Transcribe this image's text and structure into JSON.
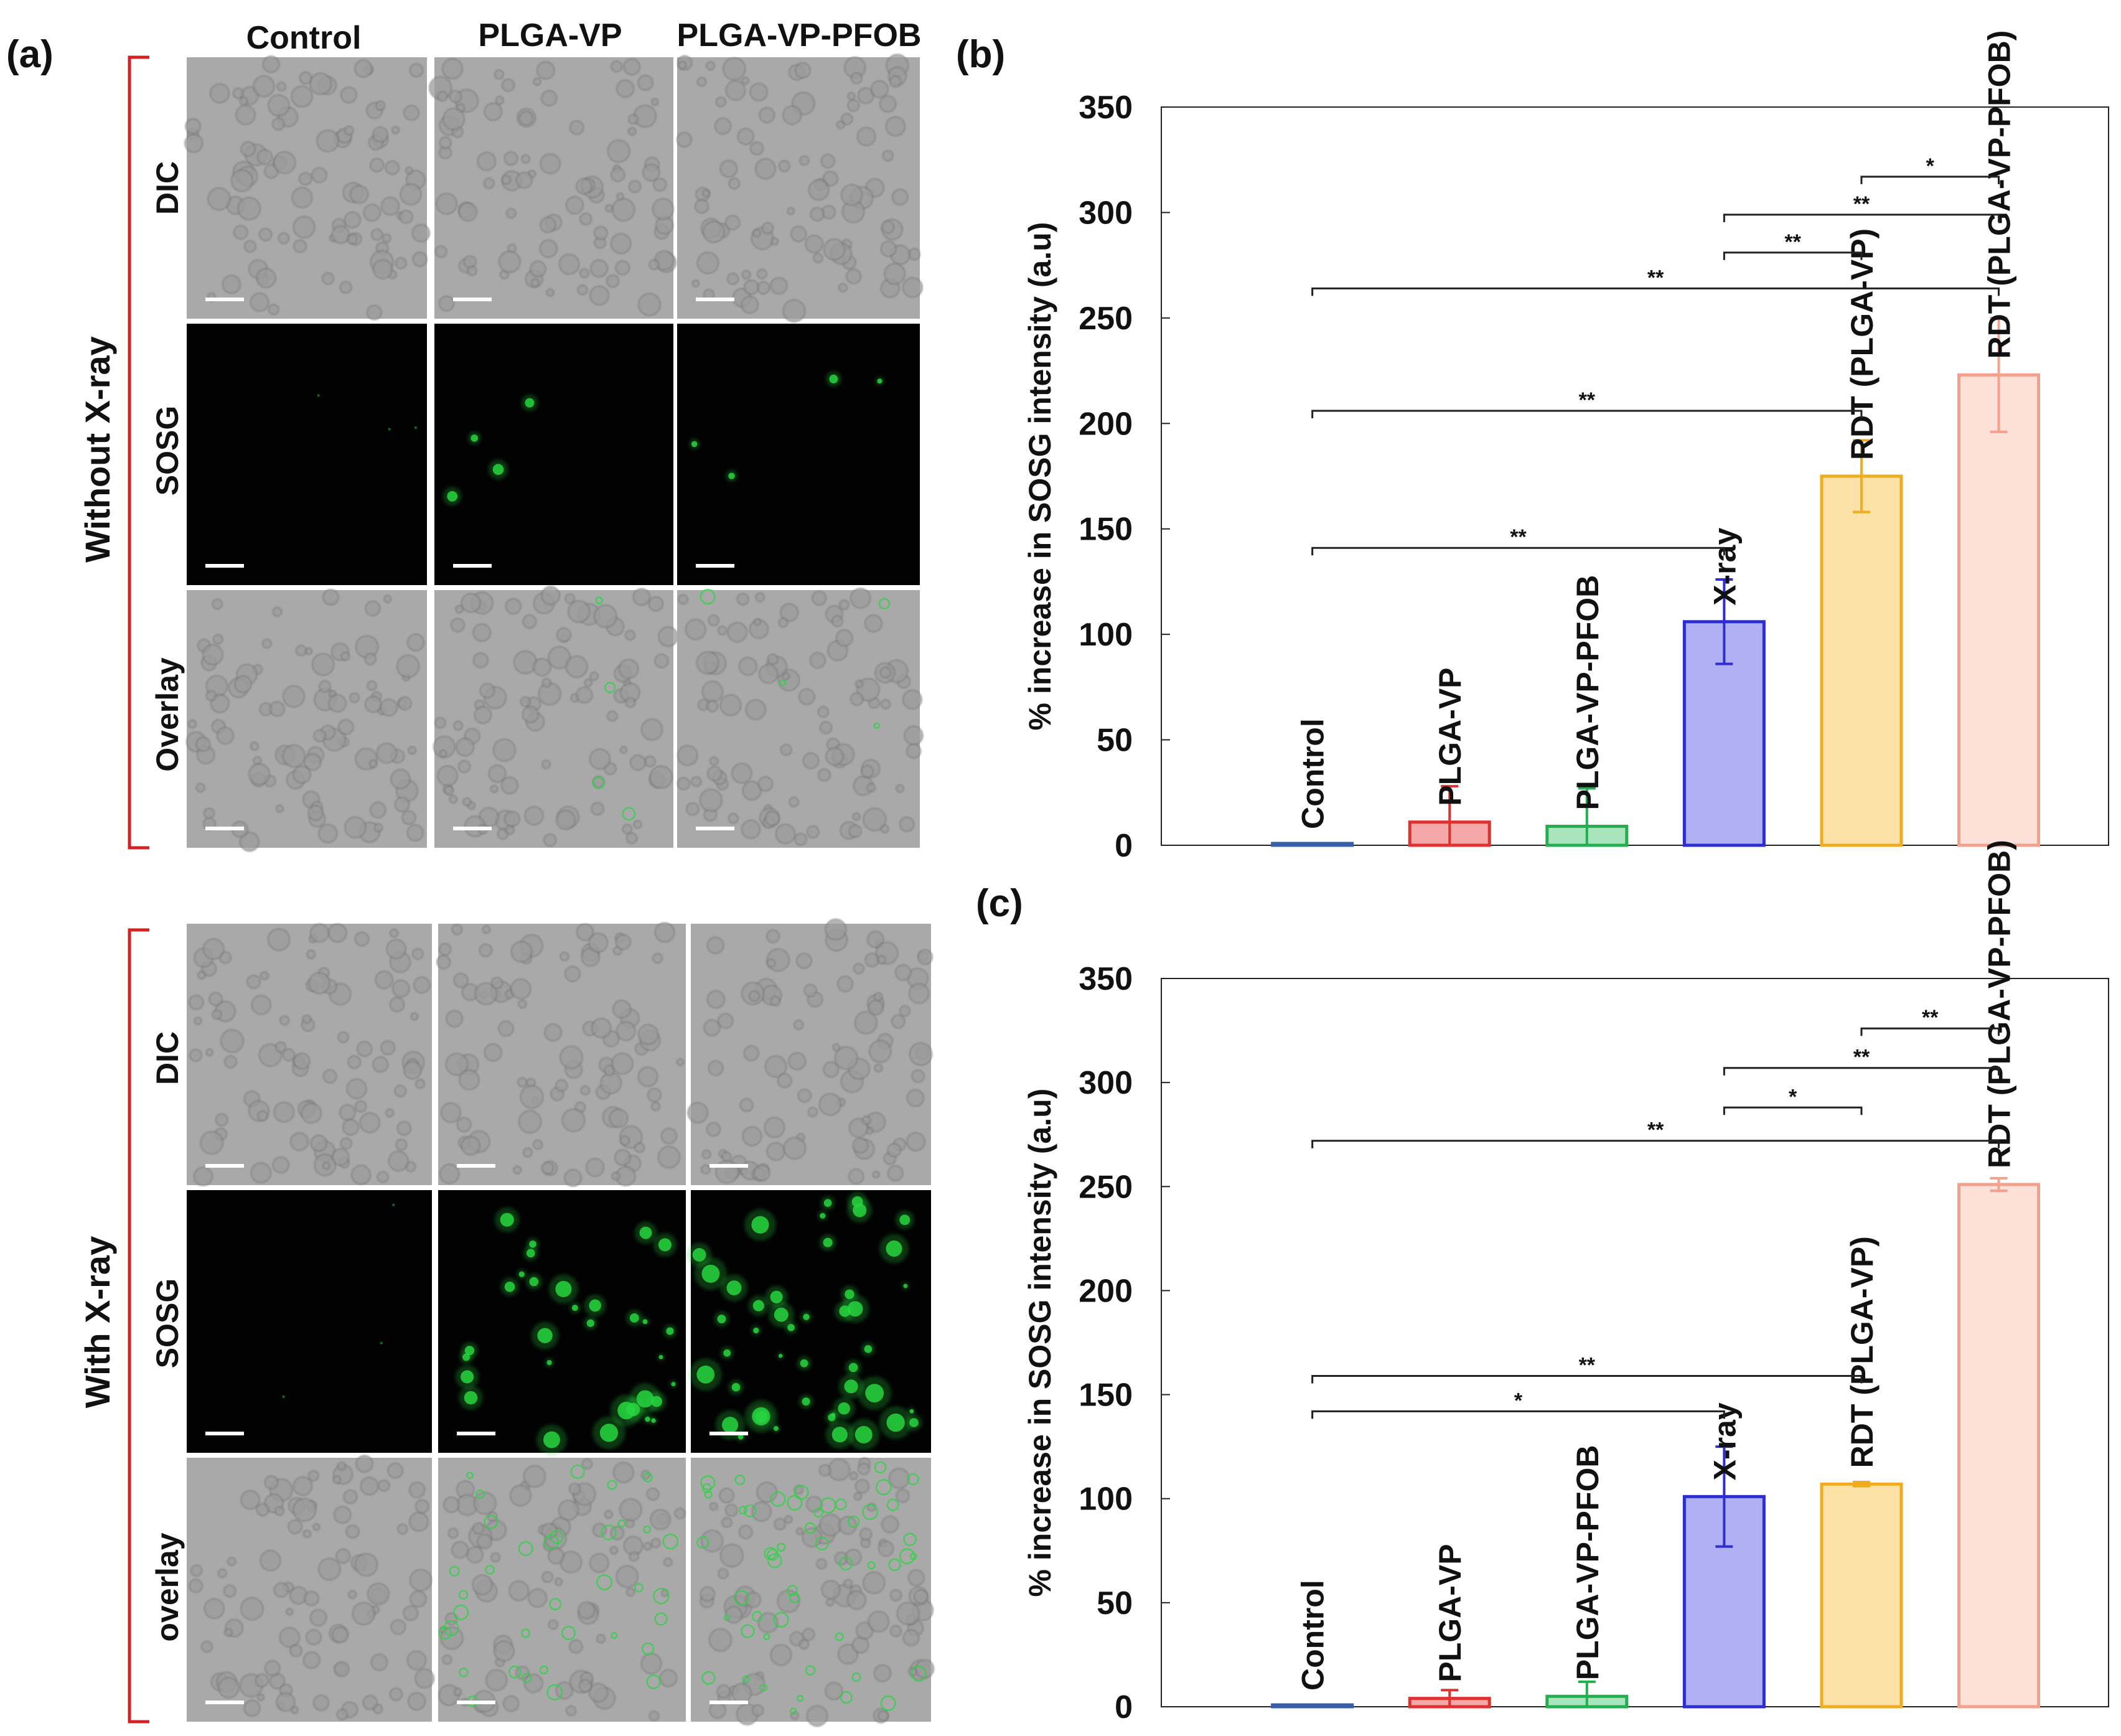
{
  "panel_labels": {
    "a": "(a)",
    "b": "(b)",
    "c": "(c)"
  },
  "micro": {
    "columns": [
      "Control",
      "PLGA-VP",
      "PLGA-VP-PFOB"
    ],
    "top": {
      "group_label": "Without X-ray",
      "rows": [
        "DIC",
        "SOSG",
        "Overlay"
      ]
    },
    "bottom": {
      "group_label": "With X-ray",
      "rows": [
        "DIC",
        "SOSG",
        "overlay"
      ]
    }
  },
  "colors": {
    "bracket": "#d42020",
    "dic_bg": "#a9a9a9",
    "sosg_bg": "#020202",
    "fluor": "#27d640",
    "scalebar": "#ffffff"
  },
  "chart_data": [
    {
      "panel": "(b)",
      "type": "bar",
      "ylabel": "% increase in SOSG intensity (a.u)",
      "ylim": [
        0,
        350
      ],
      "yticks": [
        0,
        50,
        100,
        150,
        200,
        250,
        300,
        350
      ],
      "categories": [
        "Control",
        "PLGA-VP",
        "PLGA-VP-PFOB",
        "X-ray",
        "RDT (PLGA-VP)",
        "RDT (PLGA-VP-PFOB)"
      ],
      "values": [
        0,
        11,
        9,
        106,
        175,
        223
      ],
      "errors": [
        0,
        17,
        18,
        20,
        17,
        27
      ],
      "colors": [
        "#3a5fa8",
        "#e03030",
        "#22b04f",
        "#2e2ed0",
        "#f0ab1e",
        "#f4a08a"
      ],
      "fills": [
        "#dfe6f5",
        "#f5a8a8",
        "#a8e5bd",
        "#b0b0f5",
        "#fde2a8",
        "#fde1d8"
      ],
      "significance": [
        {
          "from": 4,
          "to": 5,
          "y": 317,
          "label": "*"
        },
        {
          "from": 3,
          "to": 5,
          "y": 299,
          "label": "**"
        },
        {
          "from": 3,
          "to": 4,
          "y": 281,
          "label": "**"
        },
        {
          "from": 0,
          "to": 5,
          "y": 264,
          "label": "**"
        },
        {
          "from": 0,
          "to": 4,
          "y": 206,
          "label": "**"
        },
        {
          "from": 0,
          "to": 3,
          "y": 141,
          "label": "**"
        }
      ]
    },
    {
      "panel": "(c)",
      "type": "bar",
      "ylabel": "% increase in SOSG intensity (a.u)",
      "ylim": [
        0,
        350
      ],
      "yticks": [
        0,
        50,
        100,
        150,
        200,
        250,
        300,
        350
      ],
      "categories": [
        "Control",
        "PLGA-VP",
        "PLGA-VP-PFOB",
        "X-ray",
        "RDT (PLGA-VP)",
        "RDT (PLGA-VP-PFOB)"
      ],
      "values": [
        0,
        4,
        5,
        101,
        107,
        251
      ],
      "errors": [
        0,
        4,
        7,
        24,
        1,
        3
      ],
      "colors": [
        "#3a5fa8",
        "#e03030",
        "#22b04f",
        "#2e2ed0",
        "#f0ab1e",
        "#f4a08a"
      ],
      "fills": [
        "#dfe6f5",
        "#f5a8a8",
        "#a8e5bd",
        "#b0b0f5",
        "#fde2a8",
        "#fde1d8"
      ],
      "significance": [
        {
          "from": 4,
          "to": 5,
          "y": 326,
          "label": "**"
        },
        {
          "from": 3,
          "to": 5,
          "y": 307,
          "label": "**"
        },
        {
          "from": 3,
          "to": 4,
          "y": 288,
          "label": "*"
        },
        {
          "from": 0,
          "to": 5,
          "y": 272,
          "label": "**"
        },
        {
          "from": 0,
          "to": 4,
          "y": 159,
          "label": "**"
        },
        {
          "from": 0,
          "to": 3,
          "y": 142,
          "label": "*"
        }
      ]
    }
  ]
}
